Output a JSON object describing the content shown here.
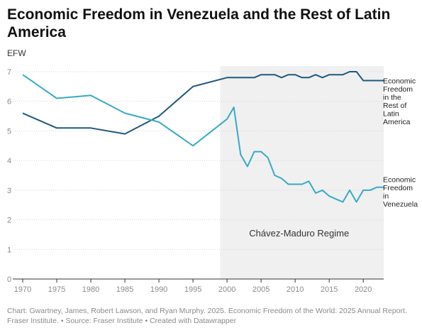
{
  "chart_data": {
    "type": "line",
    "title": "Economic Freedom in Venezuela and the Rest of Latin America",
    "ylabel": "EFW",
    "xlabel": "",
    "xlim": [
      1970,
      2023
    ],
    "ylim": [
      0,
      7
    ],
    "x_ticks": [
      1970,
      1975,
      1980,
      1985,
      1990,
      1995,
      2000,
      2005,
      2010,
      2015,
      2020
    ],
    "y_ticks": [
      0,
      1,
      2,
      3,
      4,
      5,
      6,
      7
    ],
    "grid": "horizontal",
    "shaded_region": {
      "label": "Chávez-Maduro Regime",
      "x_start": 1999,
      "x_end": 2023
    },
    "series": [
      {
        "name": "Economic Freedom in the Rest of Latin America",
        "label_lines": [
          "Economic",
          "Freedom",
          "in the",
          "Rest of",
          "Latin",
          "America"
        ],
        "color": "#1d5a80",
        "x": [
          1970,
          1975,
          1980,
          1985,
          1990,
          1995,
          2000,
          2001,
          2002,
          2003,
          2004,
          2005,
          2006,
          2007,
          2008,
          2009,
          2010,
          2011,
          2012,
          2013,
          2014,
          2015,
          2016,
          2017,
          2018,
          2019,
          2020,
          2021,
          2022,
          2023
        ],
        "values": [
          5.6,
          5.1,
          5.1,
          4.9,
          5.5,
          6.5,
          6.8,
          6.8,
          6.8,
          6.8,
          6.8,
          6.9,
          6.9,
          6.9,
          6.8,
          6.9,
          6.9,
          6.8,
          6.8,
          6.9,
          6.8,
          6.9,
          6.9,
          6.9,
          7.0,
          7.0,
          6.7,
          6.7,
          6.7,
          6.7
        ]
      },
      {
        "name": "Economic Freedom in Venezuela",
        "label_lines": [
          "Economic",
          "Freedom",
          "in",
          "Venezuela"
        ],
        "color": "#36aac6",
        "x": [
          1970,
          1975,
          1980,
          1985,
          1990,
          1995,
          2000,
          2001,
          2002,
          2003,
          2004,
          2005,
          2006,
          2007,
          2008,
          2009,
          2010,
          2011,
          2012,
          2013,
          2014,
          2015,
          2016,
          2017,
          2018,
          2019,
          2020,
          2021,
          2022,
          2023
        ],
        "values": [
          6.9,
          6.1,
          6.2,
          5.6,
          5.3,
          4.5,
          5.4,
          5.8,
          4.2,
          3.8,
          4.3,
          4.3,
          4.1,
          3.5,
          3.4,
          3.2,
          3.2,
          3.2,
          3.3,
          2.9,
          3.0,
          2.8,
          2.7,
          2.6,
          3.0,
          2.6,
          3.0,
          3.0,
          3.1,
          3.1
        ]
      }
    ]
  },
  "footer": {
    "line1": "Chart: Gwartney, James, Robert Lawson, and Ryan Murphy. 2025. Economic Freedom of the World: 2025 Annual Report.",
    "line2": "Fraser Institute. • Source: Fraser Institute • Created with Datawrapper"
  }
}
